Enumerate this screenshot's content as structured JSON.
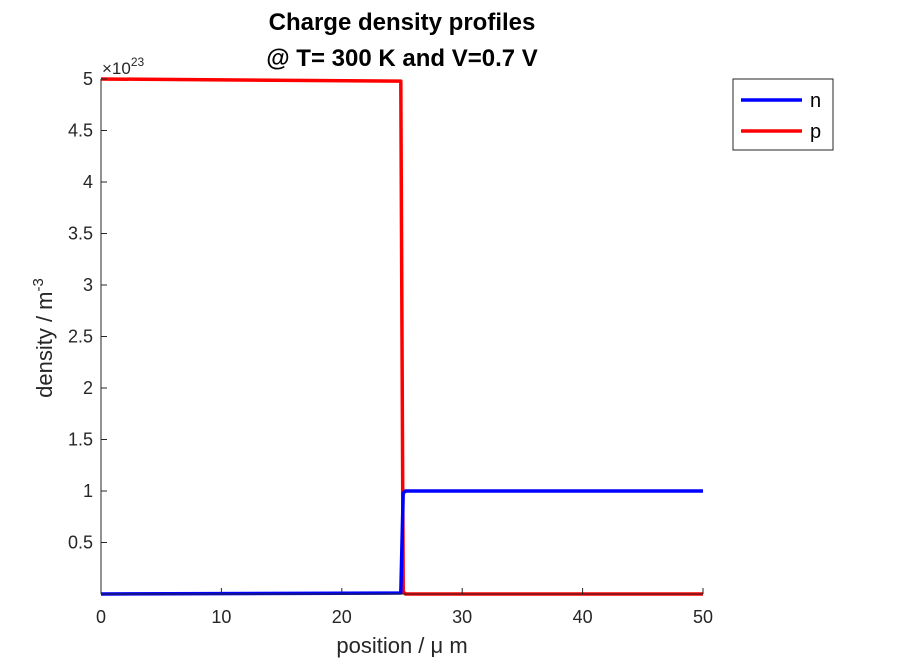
{
  "chart_data": {
    "type": "line",
    "title": [
      "Charge density profiles",
      "@ T= 300 K and V=0.7 V"
    ],
    "xlabel": "position / μ m",
    "ylabel": "density / m",
    "ylabel_superscript": "-3",
    "y_multiplier_base": "×10",
    "y_multiplier_exponent": "23",
    "xlim": [
      0,
      50
    ],
    "ylim": [
      0,
      5
    ],
    "xticks": [
      0,
      10,
      20,
      30,
      40,
      50
    ],
    "xtick_labels": [
      "0",
      "10",
      "20",
      "30",
      "40",
      "50"
    ],
    "yticks": [
      0.5,
      1,
      1.5,
      2,
      2.5,
      3,
      3.5,
      4,
      4.5,
      5
    ],
    "ytick_labels": [
      "0.5",
      "1",
      "1.5",
      "2",
      "2.5",
      "3",
      "3.5",
      "4",
      "4.5",
      "5"
    ],
    "grid": false,
    "legend_position": "top-right",
    "series": [
      {
        "name": "n",
        "color": "#0000ff",
        "x": [
          0,
          24.9,
          25.0,
          25.1,
          25.3,
          50
        ],
        "y": [
          0.0,
          0.01,
          0.5,
          0.98,
          1.0,
          1.0
        ]
      },
      {
        "name": "p",
        "color": "#ff0000",
        "x": [
          0,
          24.9,
          25.0,
          25.1,
          25.3,
          50
        ],
        "y": [
          5.0,
          4.98,
          2.5,
          0.02,
          0.0,
          0.0
        ]
      }
    ]
  }
}
